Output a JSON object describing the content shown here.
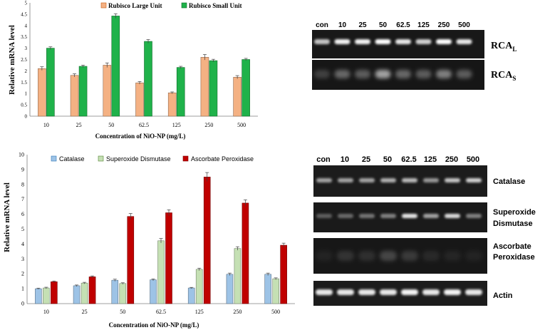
{
  "chart_data": [
    {
      "type": "bar",
      "title": "",
      "ylabel": "Relative mRNA level",
      "xlabel": "Concentration of NiO-NP (mg/L)",
      "categories": [
        "10",
        "25",
        "50",
        "62.5",
        "125",
        "250",
        "500"
      ],
      "ylim": [
        0,
        5
      ],
      "yticks": [
        "0",
        "0.5",
        "1",
        "1.5",
        "2",
        "2.5",
        "3",
        "3.5",
        "4",
        "4.5",
        "5"
      ],
      "legend_position": "top",
      "series": [
        {
          "name": "Rubisco Large Unit",
          "color": "#f4b183",
          "values": [
            2.1,
            1.8,
            2.25,
            1.47,
            1.03,
            2.6,
            1.72
          ],
          "errors": [
            0.08,
            0.07,
            0.1,
            0.06,
            0.04,
            0.12,
            0.07
          ]
        },
        {
          "name": "Rubisco Small Unit",
          "color": "#1fb24a",
          "values": [
            3.0,
            2.2,
            4.42,
            3.3,
            2.15,
            2.45,
            2.5
          ],
          "errors": [
            0.06,
            0.05,
            0.1,
            0.08,
            0.05,
            0.06,
            0.05
          ]
        }
      ]
    },
    {
      "type": "bar",
      "title": "",
      "ylabel": "Relative mRNA level",
      "xlabel": "Concentration of NiO-NP (mg/L)",
      "categories": [
        "10",
        "25",
        "50",
        "62.5",
        "125",
        "250",
        "500"
      ],
      "ylim": [
        0,
        10
      ],
      "yticks": [
        "0",
        "1",
        "2",
        "3",
        "4",
        "5",
        "6",
        "7",
        "8",
        "9",
        "10"
      ],
      "legend_position": "top",
      "series": [
        {
          "name": "Catalase",
          "color": "#9dc3e6",
          "values": [
            1.0,
            1.2,
            1.57,
            1.6,
            1.05,
            1.97,
            1.97
          ],
          "errors": [
            0.04,
            0.05,
            0.07,
            0.06,
            0.04,
            0.08,
            0.08
          ]
        },
        {
          "name": "Superoxide Dismutase",
          "color": "#c5e0b4",
          "values": [
            1.05,
            1.38,
            1.35,
            4.22,
            2.3,
            3.7,
            1.67
          ],
          "errors": [
            0.05,
            0.05,
            0.05,
            0.15,
            0.08,
            0.12,
            0.06
          ]
        },
        {
          "name": "Ascorbate Peroxidase",
          "color": "#c00000",
          "values": [
            1.47,
            1.8,
            5.85,
            6.1,
            8.5,
            6.75,
            3.92
          ],
          "errors": [
            0.05,
            0.06,
            0.2,
            0.2,
            0.3,
            0.22,
            0.14
          ]
        }
      ]
    }
  ],
  "gels": {
    "top": {
      "lane_labels": [
        "con",
        "10",
        "25",
        "50",
        "62.5",
        "125",
        "250",
        "500"
      ],
      "band_labels": [
        {
          "main": "RCA",
          "sub": "L"
        },
        {
          "main": "RCA",
          "sub": "S"
        }
      ]
    },
    "bottom": {
      "lane_labels": [
        "con",
        "10",
        "25",
        "50",
        "62.5",
        "125",
        "250",
        "500"
      ],
      "band_labels": [
        {
          "line1": "Catalase",
          "line2": ""
        },
        {
          "line1": "Superoxide",
          "line2": "Dismutase"
        },
        {
          "line1": "Ascorbate",
          "line2": "Peroxidase"
        },
        {
          "line1": "Actin",
          "line2": ""
        }
      ]
    }
  }
}
